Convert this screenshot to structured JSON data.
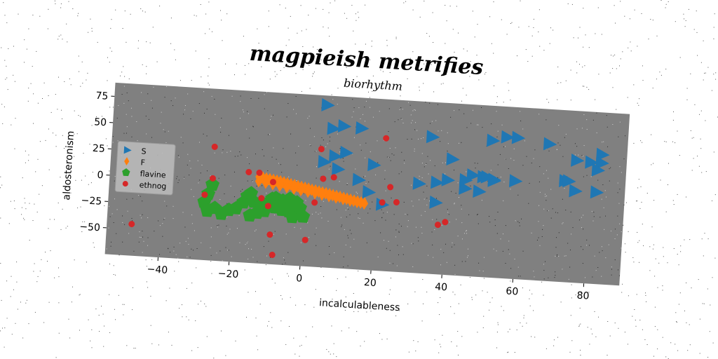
{
  "chart_data": {
    "type": "scatter",
    "title": "magpieish metrifies",
    "subtitle": "biorhythm",
    "xlabel": "incalculableness",
    "ylabel": "aldosteronism",
    "xlim": [
      -55,
      90
    ],
    "ylim": [
      -75,
      88
    ],
    "xticks": [
      -40,
      -20,
      0,
      20,
      40,
      60,
      80
    ],
    "yticks": [
      -50,
      -25,
      0,
      25,
      50,
      75
    ],
    "legend_position": "left",
    "series": [
      {
        "name": "S",
        "marker": "triangle-right",
        "color": "#1f77b4",
        "x": [
          5,
          10,
          7,
          15,
          35,
          52,
          56,
          59,
          68,
          76,
          80,
          83,
          83,
          82,
          11,
          8,
          5,
          19,
          9,
          15,
          32,
          37,
          40,
          47,
          45,
          49,
          50,
          53,
          53,
          59,
          73,
          74,
          76,
          82,
          45,
          41,
          51,
          18,
          22,
          37
        ],
        "y": [
          79,
          60,
          57,
          59,
          55,
          55,
          59,
          59,
          55,
          41,
          40,
          48,
          40,
          33,
          35,
          31,
          25,
          25,
          19,
          10,
          10,
          12,
          15,
          21,
          8,
          6,
          20,
          18,
          17,
          18,
          21,
          21,
          12,
          12,
          16,
          35,
          20,
          -1,
          -12,
          -7
        ],
        "sizes": [
          14,
          14,
          14,
          14,
          14,
          14,
          14,
          14,
          14,
          14,
          14,
          14,
          14,
          14,
          14,
          14,
          14,
          14,
          14,
          14,
          14,
          14,
          14,
          14,
          14,
          14,
          14,
          14,
          14,
          14,
          14,
          14,
          14,
          14,
          14,
          14,
          14,
          14,
          14,
          14
        ]
      },
      {
        "name": "F",
        "marker": "diamond",
        "color": "#ff7f0e",
        "x": [
          -13,
          -12,
          -11,
          -10,
          -9,
          -8,
          -7,
          -6,
          -5,
          -4,
          -3,
          -2,
          -1,
          0,
          1,
          2,
          3,
          4,
          5,
          6,
          7,
          8,
          9,
          10,
          11,
          12,
          13,
          14,
          15,
          16,
          -13,
          -11,
          -9,
          -7,
          -5,
          -3,
          -1,
          1,
          3,
          5,
          7,
          9,
          11,
          13,
          15,
          17
        ],
        "y": [
          7,
          6.5,
          6,
          5.5,
          5,
          4.5,
          4,
          3.3,
          2.6,
          2,
          1.3,
          0.6,
          0,
          -0.6,
          -1.3,
          -2,
          -2.6,
          -3.3,
          -4,
          -4.6,
          -5.3,
          -6,
          -6.6,
          -7.3,
          -8,
          -8.6,
          -9.3,
          -10,
          -10.6,
          -11.3,
          3,
          2,
          1,
          0,
          -1,
          -2,
          -3,
          -4,
          -5,
          -6,
          -7,
          -8,
          -9,
          -10,
          -11,
          -12
        ],
        "sizes": [
          12,
          12,
          12,
          12,
          12,
          12,
          12,
          12,
          12,
          12,
          12,
          12,
          12,
          12,
          12,
          12,
          12,
          12,
          12,
          12,
          12,
          12,
          12,
          12,
          12,
          12,
          12,
          12,
          12,
          12,
          12,
          12,
          12,
          12,
          12,
          12,
          12,
          12,
          12,
          12,
          12,
          12,
          12,
          12,
          12,
          12
        ]
      },
      {
        "name": "flavine",
        "marker": "pentagon",
        "color": "#2ca02c",
        "x": [
          -26,
          -27,
          -28,
          -27,
          -25,
          -23,
          -21,
          -19,
          -17,
          -16,
          -15,
          -14,
          -13,
          -11,
          -10,
          -9,
          -8,
          -7,
          -6,
          -5,
          -4,
          -3,
          -2,
          -1,
          0,
          -8,
          -7,
          -5,
          -6,
          -4,
          -15,
          -12
        ],
        "y": [
          -3,
          -12,
          -20,
          -28,
          -25,
          -30,
          -26,
          -24,
          -18,
          -12,
          -9,
          -17,
          -27,
          -25,
          -17,
          -13,
          -12,
          -14,
          -14,
          -18,
          -24,
          -29,
          -15,
          -20,
          -28,
          -21,
          -20,
          -17,
          -23,
          -12,
          -30,
          -17
        ],
        "sizes": [
          14,
          14,
          14,
          14,
          14,
          14,
          14,
          14,
          14,
          14,
          14,
          14,
          14,
          14,
          14,
          14,
          14,
          14,
          14,
          14,
          14,
          14,
          14,
          14,
          14,
          14,
          14,
          14,
          14,
          14,
          14,
          14
        ]
      },
      {
        "name": "ethnog",
        "marker": "circle",
        "color": "#d62728",
        "x": [
          -48,
          -26,
          -26,
          -28,
          -16,
          -13,
          -9,
          -10,
          -12,
          -8,
          -9,
          4,
          5,
          8,
          3,
          1,
          22,
          24,
          22,
          26,
          38,
          40
        ],
        "y": [
          -45,
          33,
          3,
          -13,
          11,
          11,
          3,
          -20,
          -13,
          -66,
          -47,
          37,
          9,
          11,
          -14,
          -50,
          51,
          5,
          -10,
          -9,
          -28,
          -25
        ],
        "sizes": [
          6,
          6,
          6,
          6,
          6,
          6,
          6,
          6,
          6,
          6,
          6,
          6,
          6,
          6,
          6,
          6,
          6,
          6,
          6,
          6,
          6,
          6
        ]
      }
    ]
  },
  "colors": {
    "plot_background": "#808080",
    "figure_background": "#ffffff",
    "legend_background": "#bdbdbd"
  }
}
